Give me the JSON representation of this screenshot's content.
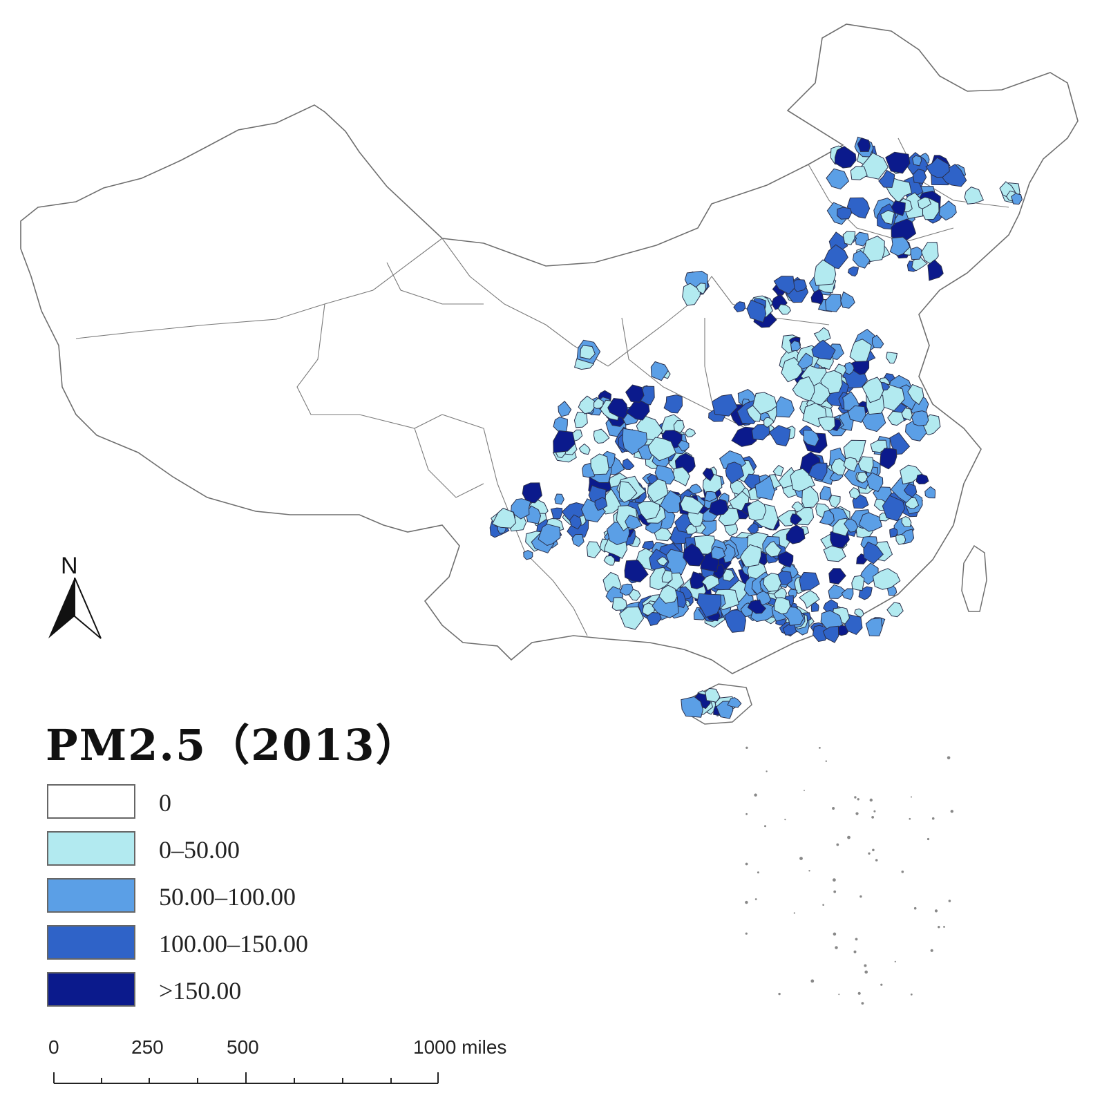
{
  "map": {
    "title": "PM2.5（2013）",
    "colors": {
      "outline": "#6e6e6e",
      "region_edge": "#2a2f4a",
      "background": "#ffffff"
    }
  },
  "legend": {
    "items": [
      {
        "label": "0",
        "color": "#ffffff"
      },
      {
        "label": "0–50.00",
        "color": "#b2eaf0"
      },
      {
        "label": "50.00–100.00",
        "color": "#5b9fe6"
      },
      {
        "label": "100.00–150.00",
        "color": "#2f63c8"
      },
      {
        "label": ">150.00",
        "color": "#0b1a8c"
      }
    ]
  },
  "north_arrow": {
    "letter": "N",
    "icon": "north-arrow-icon"
  },
  "scale_bar": {
    "labels": [
      "0",
      "250",
      "500",
      "1000 miles"
    ]
  }
}
